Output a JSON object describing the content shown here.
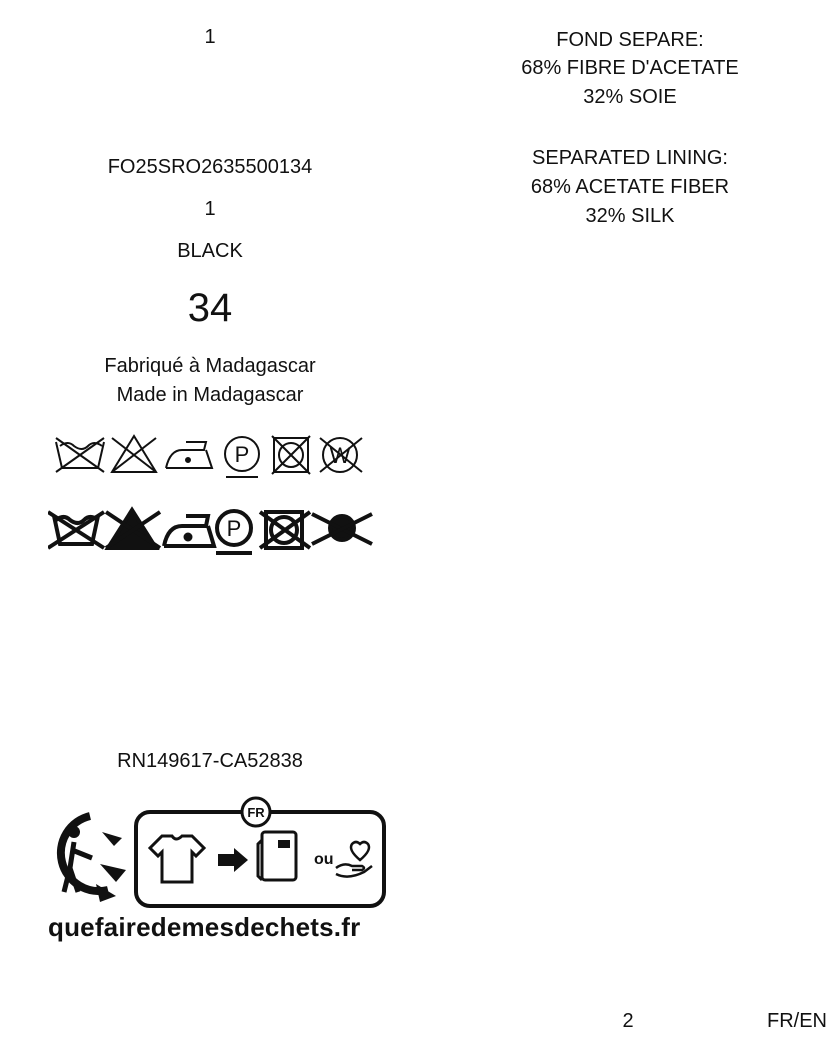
{
  "label": {
    "count_top": "1",
    "reference": "FO25SRO2635500134",
    "count_second": "1",
    "color": "BLACK",
    "size": "34",
    "origin_fr": "Fabriqué à Madagascar",
    "origin_en": "Made in Madagascar",
    "rn_ca": "RN149617-CA52838"
  },
  "composition": {
    "fr_title": "FOND SEPARE:",
    "fr_line1": "68% FIBRE D'ACETATE",
    "fr_line2": "32% SOIE",
    "en_title": "SEPARATED LINING:",
    "en_line1": "68% ACETATE FIBER",
    "en_line2": "32% SILK"
  },
  "care_icons_row1": [
    "no-wash-icon",
    "no-bleach-icon",
    "iron-low-icon",
    "dry-clean-p-icon",
    "no-tumble-dry-icon",
    "no-wet-clean-icon"
  ],
  "care_icons_row2": [
    "no-wash-icon",
    "no-bleach-icon",
    "iron-low-icon",
    "dry-clean-p-icon",
    "no-tumble-dry-icon",
    "no-wet-clean-icon"
  ],
  "triman": {
    "country": "FR",
    "connector": "ou",
    "website": "quefairedemesdechets.fr"
  },
  "footer": {
    "page": "2",
    "lang": "FR/EN"
  }
}
